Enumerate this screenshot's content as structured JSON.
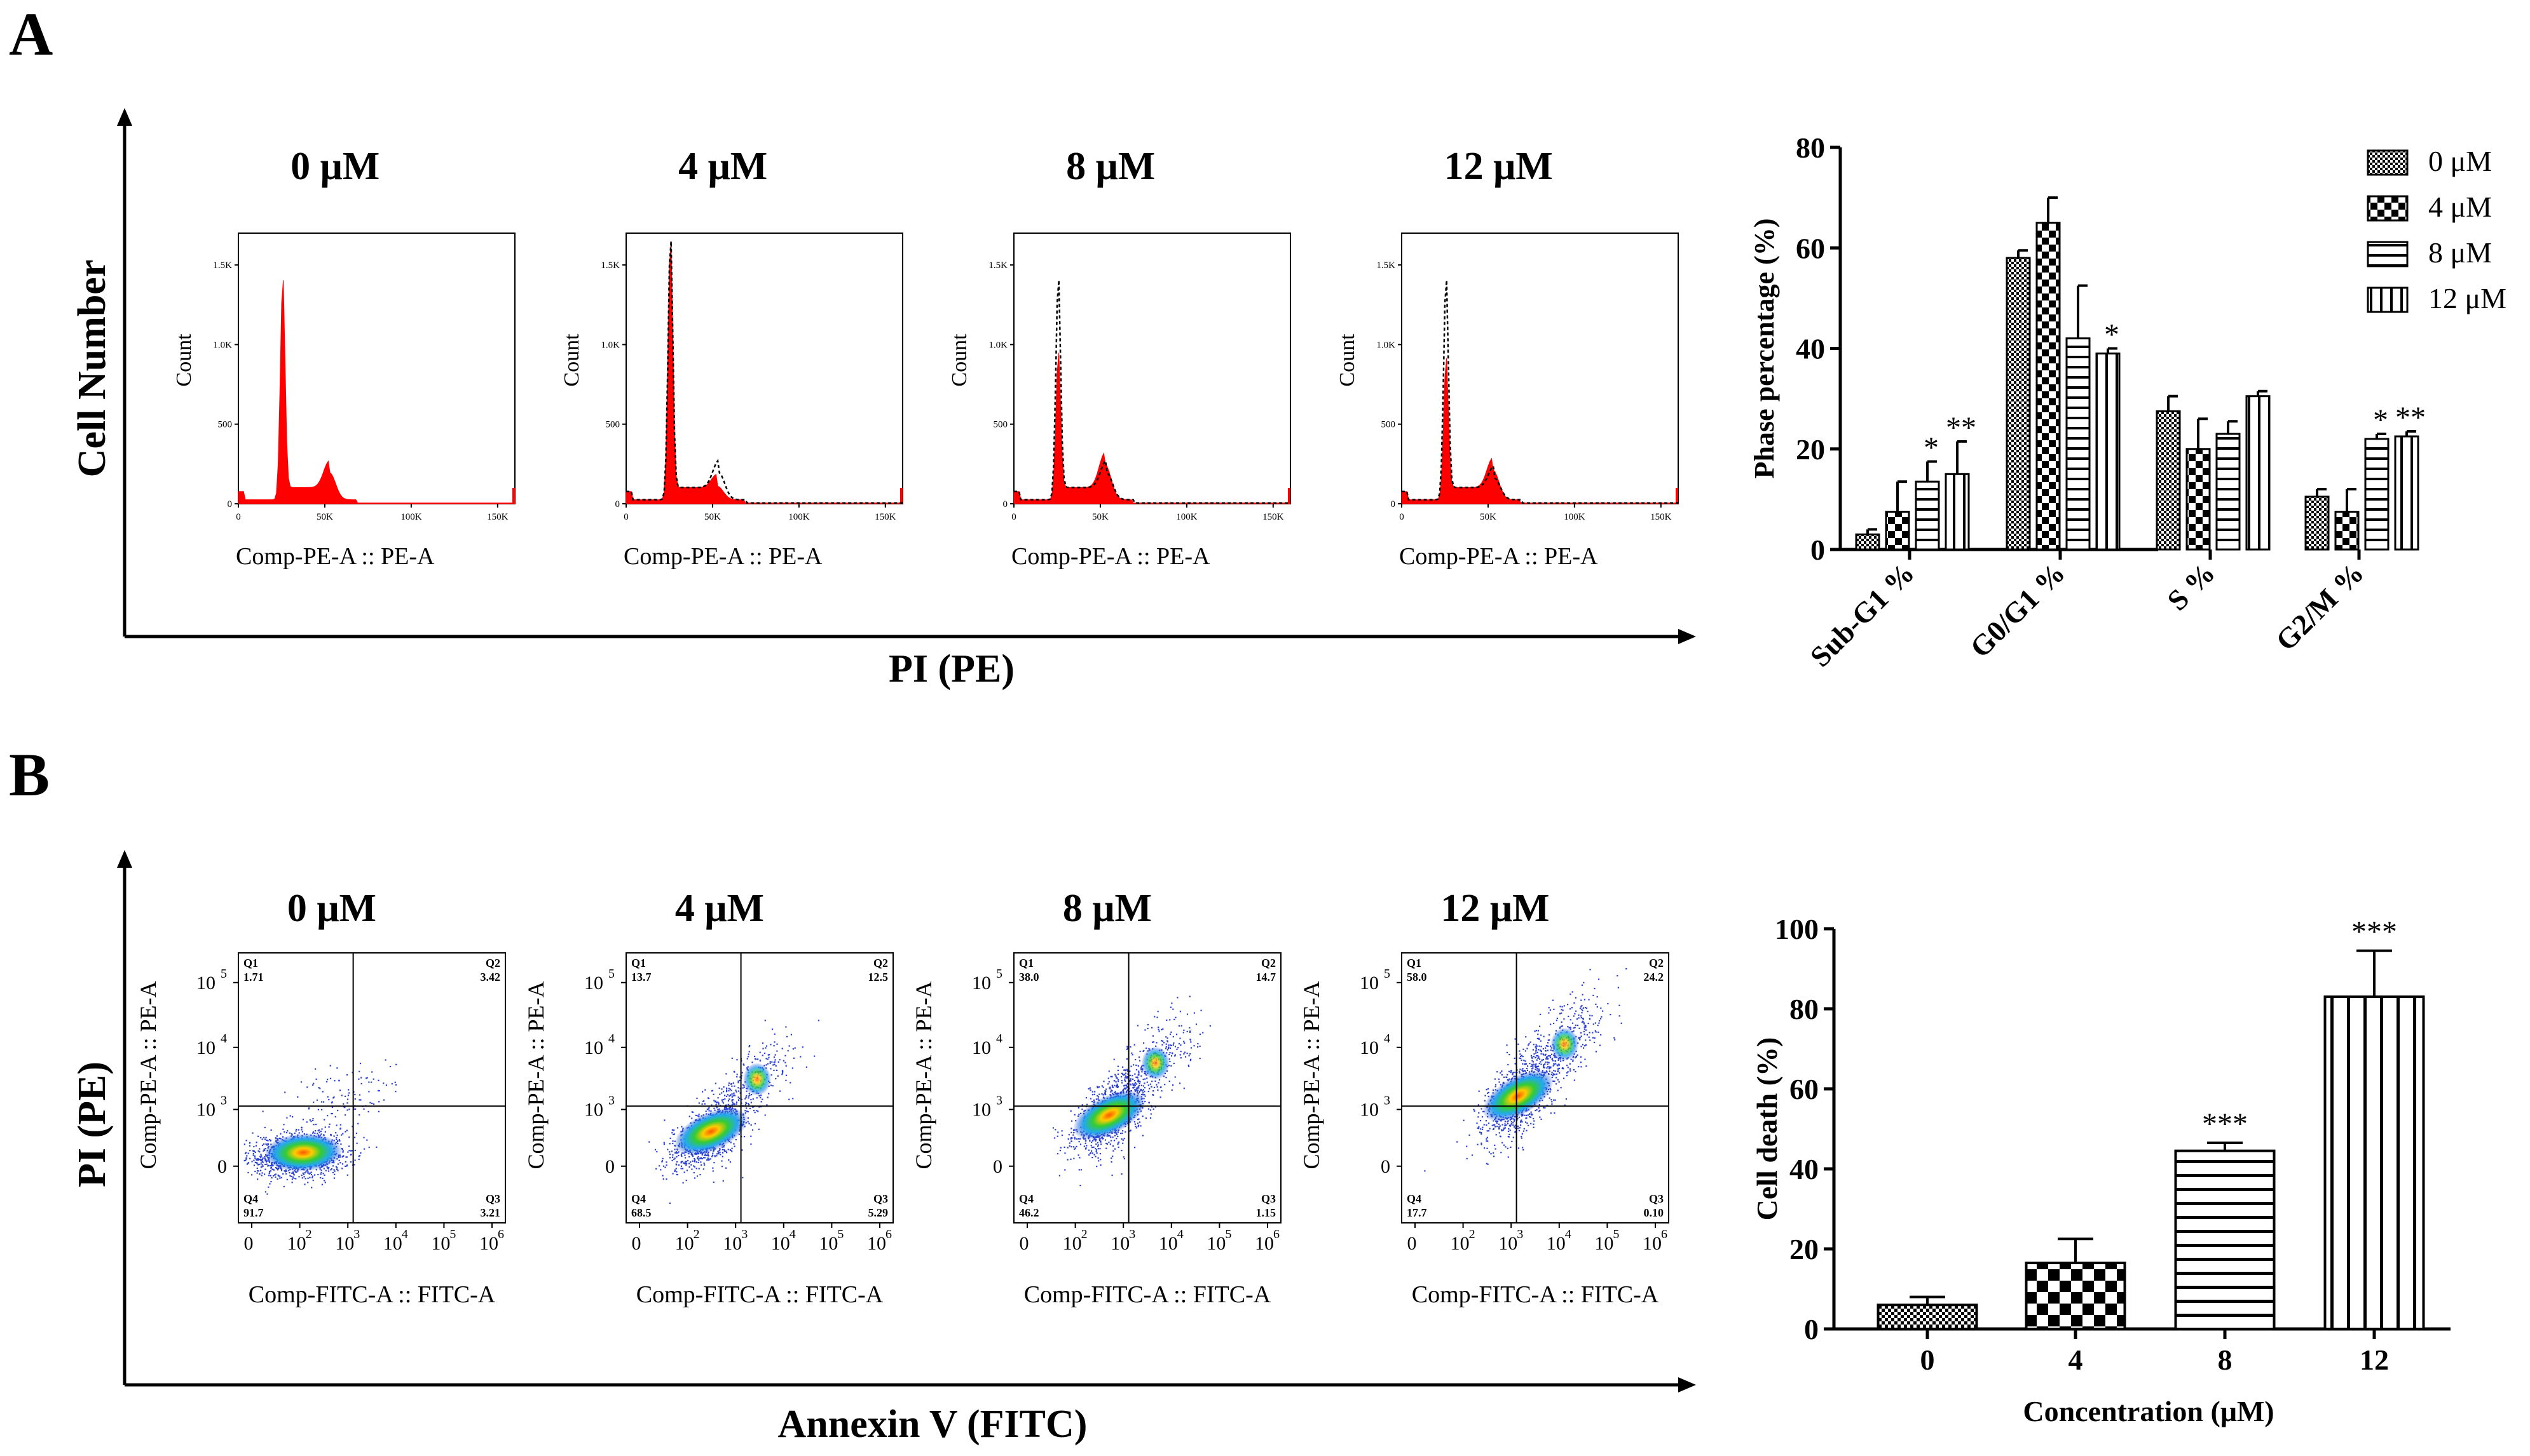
{
  "panels": {
    "a_label": "A",
    "b_label": "B"
  },
  "cell_cycle": {
    "y_axis_label": "Cell Number",
    "x_axis_label": "PI (PE)",
    "histogram_y_label": "Count",
    "histogram_x_label": "Comp-PE-A :: PE-A",
    "y_ticks": [
      "0",
      "500",
      "1.0K",
      "1.5K"
    ],
    "x_ticks": [
      "0",
      "50K",
      "100K",
      "150K"
    ],
    "concentrations": [
      "0 μM",
      "4 μM",
      "8 μM",
      "12 μM"
    ],
    "colors": {
      "fill": "#ff0000",
      "overlay": "#000000"
    }
  },
  "apoptosis": {
    "y_axis_label": "PI (PE)",
    "x_axis_label": "Annexin V (FITC)",
    "scatter_y_label": "Comp-PE-A :: PE-A",
    "scatter_x_label": "Comp-FITC-A :: FITC-A",
    "x_ticks": [
      "0",
      "10",
      "10",
      "10",
      "10",
      "10"
    ],
    "x_exps": [
      "",
      "2",
      "3",
      "4",
      "5",
      "6"
    ],
    "y_ticks": [
      "0",
      "10",
      "10",
      "10"
    ],
    "y_exps": [
      "",
      "3",
      "4",
      "5"
    ],
    "concentrations": [
      "0 μM",
      "4 μM",
      "8 μM",
      "12 μM"
    ],
    "quadrant_names": [
      "Q1",
      "Q2",
      "Q3",
      "Q4"
    ],
    "quadrants": [
      {
        "q1": "1.71",
        "q2": "3.42",
        "q3": "3.21",
        "q4": "91.7"
      },
      {
        "q1": "13.7",
        "q2": "12.5",
        "q3": "5.29",
        "q4": "68.5"
      },
      {
        "q1": "38.0",
        "q2": "14.7",
        "q3": "1.15",
        "q4": "46.2"
      },
      {
        "q1": "58.0",
        "q2": "24.2",
        "q3": "0.10",
        "q4": "17.7"
      }
    ]
  },
  "chart_data": [
    {
      "type": "bar",
      "ylabel": "Phase percentage (%)",
      "xlabel": "",
      "ylim": [
        0,
        80
      ],
      "yticks": [
        0,
        20,
        40,
        60,
        80
      ],
      "categories": [
        "Sub-G1 %",
        "G0/G1 %",
        "S %",
        "G2/M %"
      ],
      "legend_position": "top-right",
      "series": [
        {
          "name": "0 μM",
          "values": [
            3,
            58,
            27.5,
            10.5
          ],
          "errors": [
            1,
            1.5,
            3,
            1.5
          ],
          "sig": [
            "",
            "",
            "",
            ""
          ]
        },
        {
          "name": "4 μM",
          "values": [
            7.5,
            65,
            20,
            7.5
          ],
          "errors": [
            6,
            5,
            6,
            4.5
          ],
          "sig": [
            "",
            "",
            "",
            ""
          ]
        },
        {
          "name": "8 μM",
          "values": [
            13.5,
            42,
            23,
            22
          ],
          "errors": [
            4,
            10.5,
            2.5,
            1
          ],
          "sig": [
            "*",
            "",
            "",
            "*"
          ]
        },
        {
          "name": "12 μM",
          "values": [
            15,
            39,
            30.5,
            22.5
          ],
          "errors": [
            6.5,
            1,
            1,
            1
          ],
          "sig": [
            "**",
            "*",
            "",
            "**"
          ]
        }
      ]
    },
    {
      "type": "bar",
      "ylabel": "Cell death (%)",
      "xlabel": "Concentration (μM)",
      "ylim": [
        0,
        100
      ],
      "yticks": [
        0,
        20,
        40,
        60,
        80,
        100
      ],
      "categories": [
        "0",
        "4",
        "8",
        "12"
      ],
      "values": [
        6,
        16.5,
        44.5,
        83
      ],
      "errors": [
        2,
        6,
        2,
        11.5
      ],
      "sig": [
        "",
        "",
        "***",
        "***"
      ]
    }
  ]
}
